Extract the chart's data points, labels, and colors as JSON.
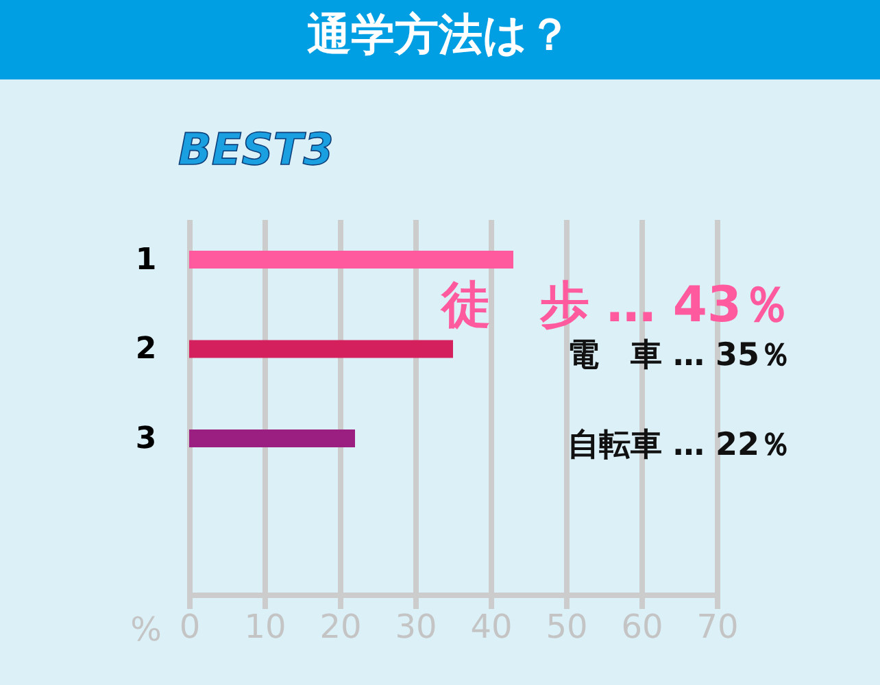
{
  "chart_data": {
    "type": "bar",
    "orientation": "horizontal",
    "title": "通学方法は？",
    "subtitle": "BEST3",
    "xlabel": "%",
    "categories": [
      "1",
      "2",
      "3"
    ],
    "values": [
      43,
      35,
      22
    ],
    "colors": [
      "#ff5a9e",
      "#d4205c",
      "#9b1f80"
    ],
    "value_labels": [
      "徒　歩 … 43％",
      "電　車 … 35％",
      "自転車 … 22％"
    ],
    "xlim": [
      0,
      70
    ],
    "xticks": [
      0,
      10,
      20,
      30,
      40,
      50,
      60,
      70
    ],
    "grid": "x"
  }
}
